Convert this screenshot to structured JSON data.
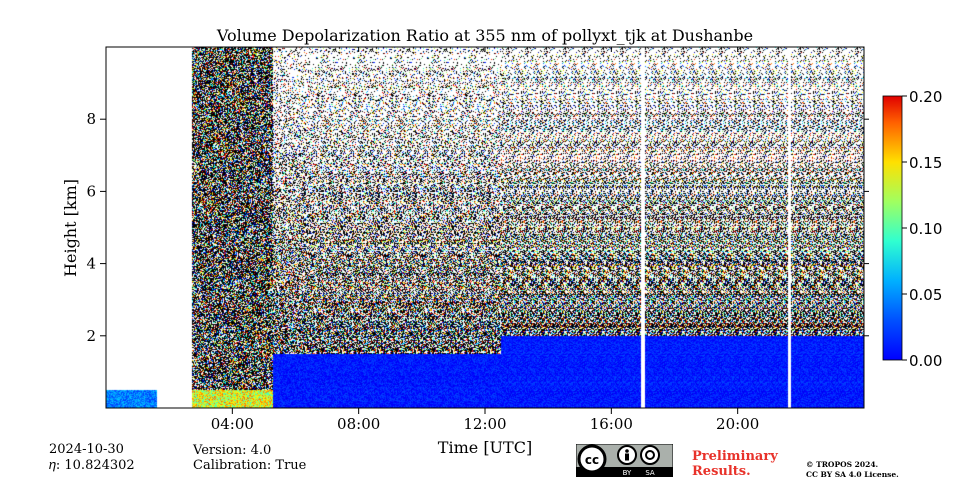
{
  "chart_data": {
    "type": "heatmap",
    "title": "Volume Depolarization Ratio at 355 nm of pollyxt_tjk at Dushanbe",
    "xlabel": "Time [UTC]",
    "ylabel": "Height [km]",
    "xlim": [
      0,
      24
    ],
    "ylim": [
      0,
      10
    ],
    "x_ticks": [
      4,
      8,
      12,
      16,
      20
    ],
    "x_tick_labels": [
      "04:00",
      "08:00",
      "12:00",
      "16:00",
      "20:00"
    ],
    "y_ticks": [
      2,
      4,
      6,
      8
    ],
    "y_tick_labels": [
      "2",
      "4",
      "6",
      "8"
    ],
    "colorbar": {
      "range": [
        0.0,
        0.2
      ],
      "ticks": [
        0.0,
        0.05,
        0.1,
        0.15,
        0.2
      ],
      "tick_labels": [
        "0.00",
        "0.05",
        "0.10",
        "0.15",
        "0.20"
      ],
      "colormap": "jet"
    },
    "data_gaps_hours": [
      [
        2.55,
        2.72
      ],
      [
        16.95,
        17.08
      ],
      [
        21.6,
        21.7
      ]
    ],
    "observations": [
      {
        "hours": [
          0.0,
          1.6
        ],
        "signal_top_km": 0.5,
        "depol": 0.05
      },
      {
        "hours": [
          2.7,
          5.3
        ],
        "aerosol_top_km": 0.5,
        "noisy_top_km": 10.0,
        "depol": 0.12
      },
      {
        "hours": [
          5.3,
          12.5
        ],
        "aerosol_top_km": 1.5,
        "noisy_top_km": 10.0,
        "depol": 0.03
      },
      {
        "hours": [
          12.5,
          24.0
        ],
        "aerosol_top_km": 2.0,
        "noisy_top_km": 10.0,
        "depol": 0.03
      }
    ]
  },
  "footer": {
    "date": "2024-10-30",
    "eta": "𝜂: 10.824302",
    "version": "Version: 4.0",
    "calibration": "Calibration: True",
    "preliminary_line1": "Preliminary",
    "preliminary_line2": "Results.",
    "license_line1": "© TROPOS 2024.",
    "license_line2": "CC BY SA 4.0 License.",
    "cc_by": "BY",
    "cc_sa": "SA"
  }
}
